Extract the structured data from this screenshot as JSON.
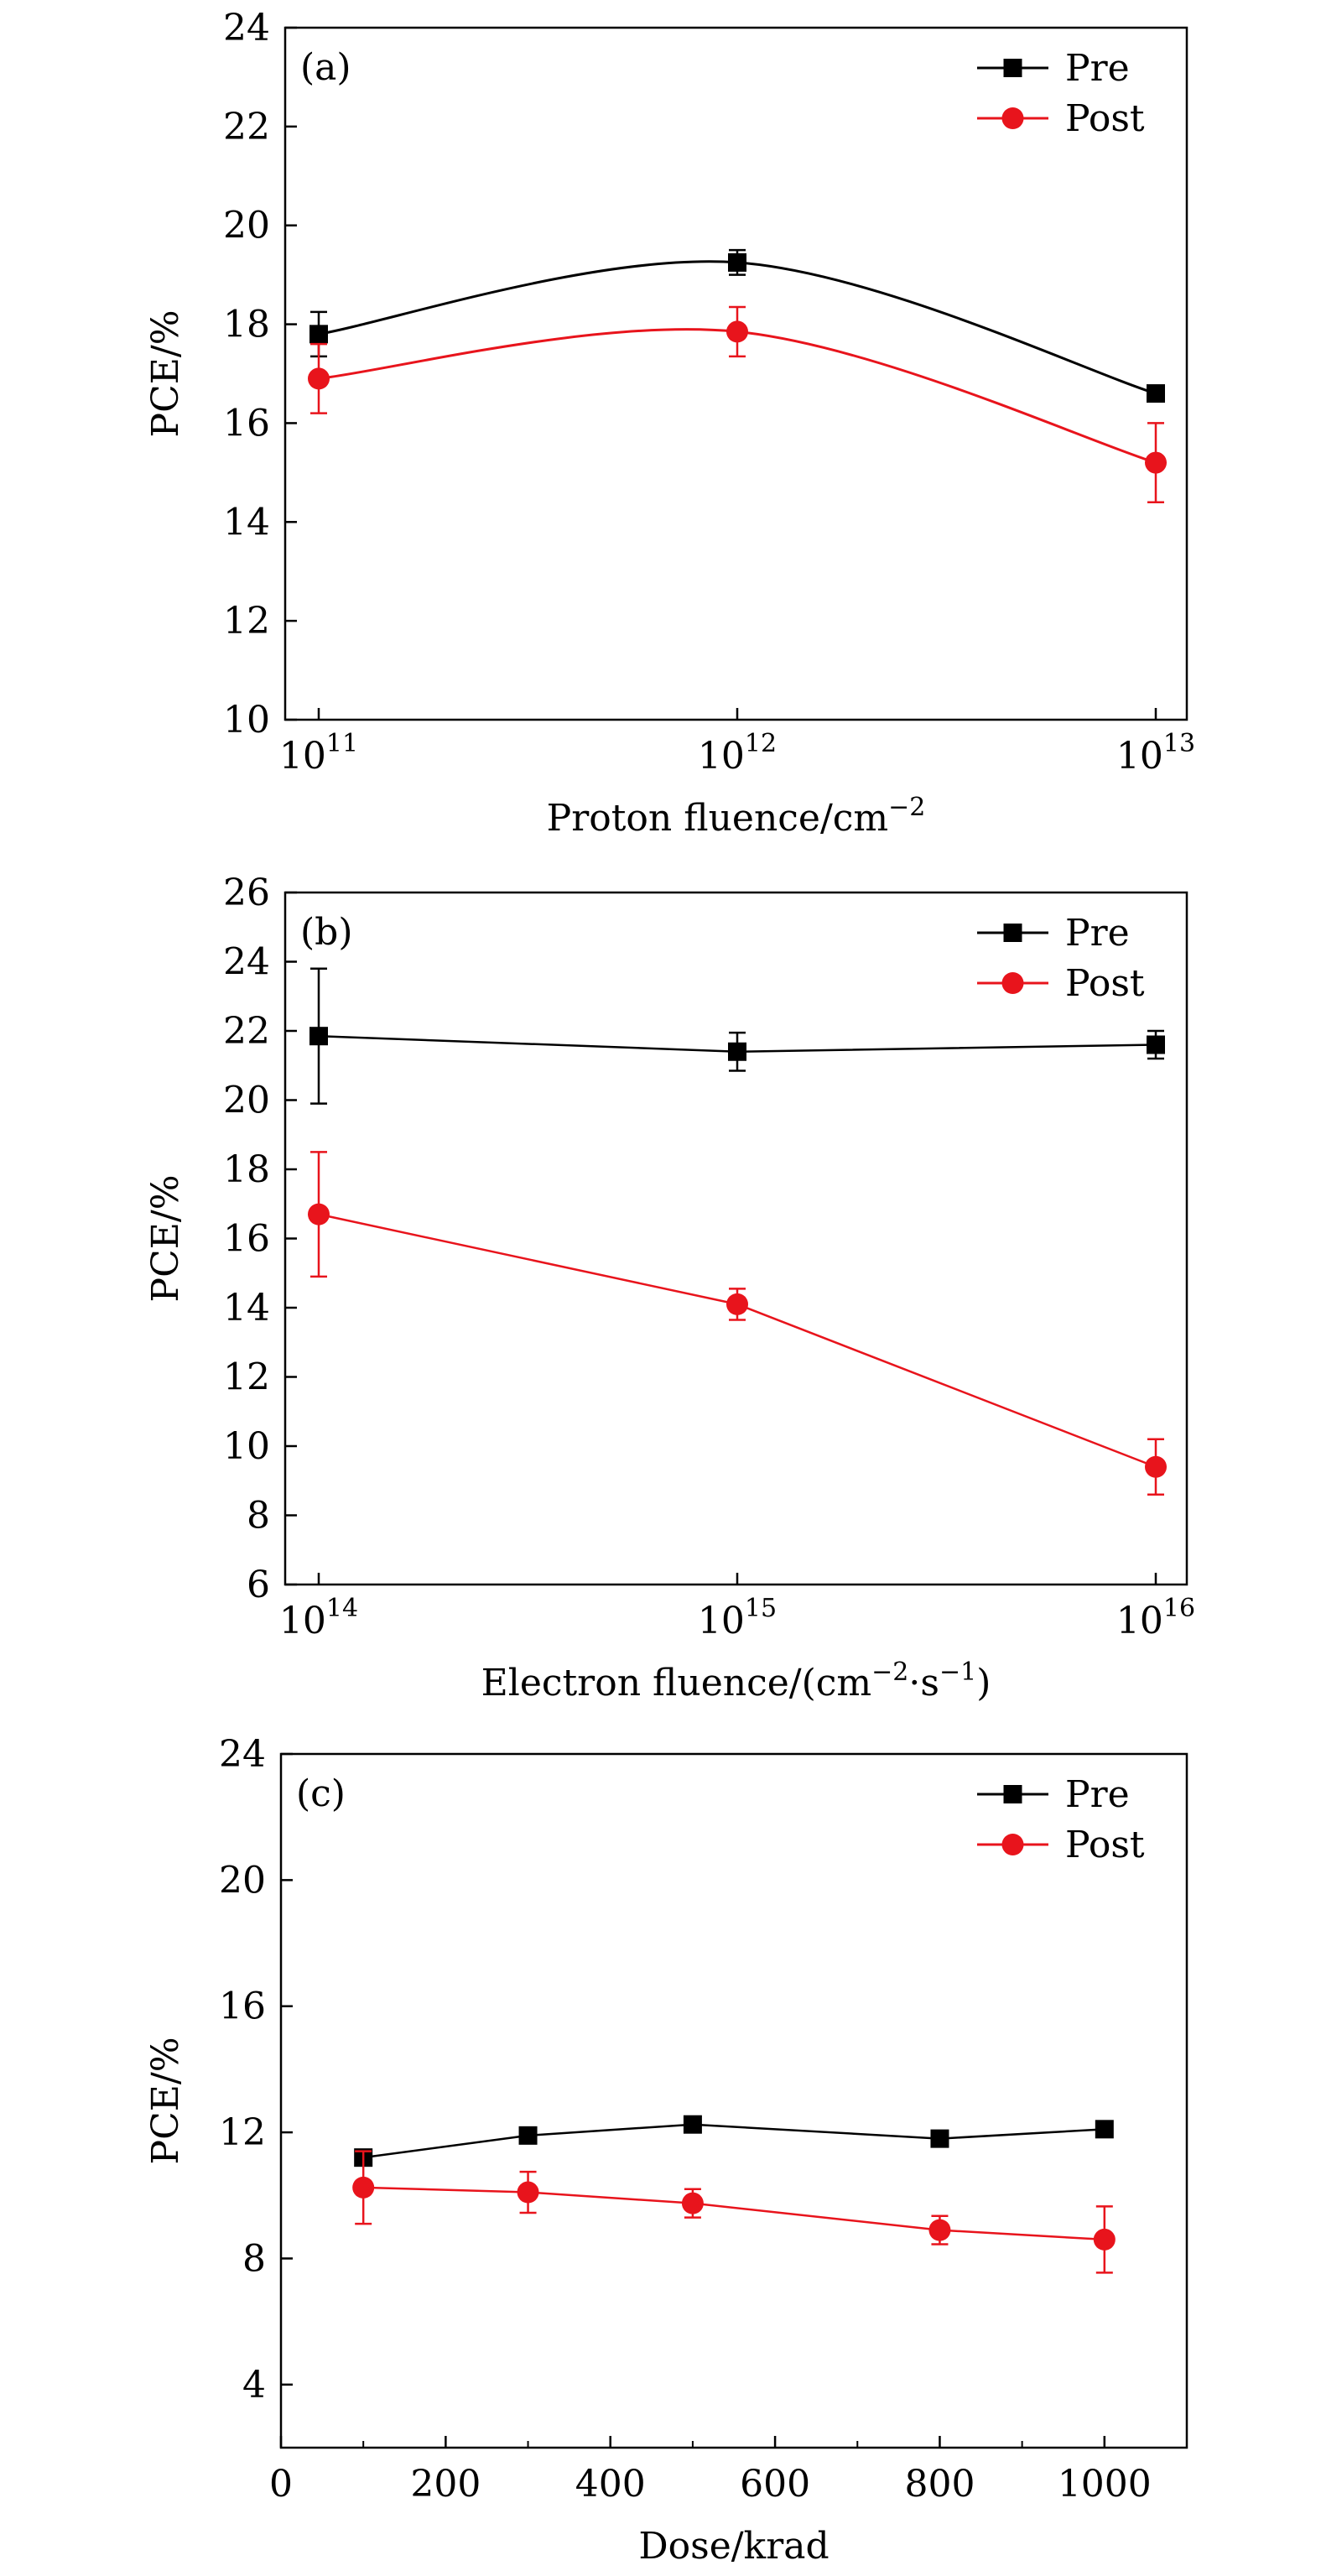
{
  "chart_data": [
    {
      "type": "line",
      "panel_label": "(a)",
      "x_scale": "log",
      "x": [
        100000000000,
        1000000000000,
        10000000000000
      ],
      "xlim": [
        100000000000,
        10000000000000
      ],
      "x_ticks": [
        {
          "base": "10",
          "exp": "11"
        },
        {
          "base": "10",
          "exp": "12"
        },
        {
          "base": "10",
          "exp": "13"
        }
      ],
      "xlabel": {
        "main": "Proton fluence/cm",
        "sup": "−2",
        "tail": ""
      },
      "ylabel": "PCE/%",
      "ylim": [
        10,
        24
      ],
      "y_ticks": [
        10,
        12,
        14,
        16,
        18,
        20,
        22,
        24
      ],
      "smooth": true,
      "legend_position": "top-right",
      "series": [
        {
          "name": "Pre",
          "color": "#000000",
          "marker": "square",
          "values": [
            17.8,
            19.25,
            16.6
          ],
          "errors": [
            0.45,
            0.25,
            0.15
          ]
        },
        {
          "name": "Post",
          "color": "#e8141c",
          "marker": "circle",
          "values": [
            16.9,
            17.85,
            15.2
          ],
          "errors": [
            0.7,
            0.5,
            0.8
          ]
        }
      ]
    },
    {
      "type": "line",
      "panel_label": "(b)",
      "x_scale": "log",
      "x": [
        100000000000000,
        1000000000000000,
        10000000000000000
      ],
      "xlim": [
        100000000000000,
        10000000000000000
      ],
      "x_ticks": [
        {
          "base": "10",
          "exp": "14"
        },
        {
          "base": "10",
          "exp": "15"
        },
        {
          "base": "10",
          "exp": "16"
        }
      ],
      "xlabel": {
        "main": "Electron fluence/(cm",
        "sup": "−2",
        "mid": "·s",
        "sup2": "−1",
        "tail": ")"
      },
      "ylabel": "PCE/%",
      "ylim": [
        6,
        26
      ],
      "y_ticks": [
        6,
        8,
        10,
        12,
        14,
        16,
        18,
        20,
        22,
        24,
        26
      ],
      "smooth": false,
      "legend_position": "top-right",
      "series": [
        {
          "name": "Pre",
          "color": "#000000",
          "marker": "square",
          "values": [
            21.85,
            21.4,
            21.6
          ],
          "errors": [
            1.95,
            0.55,
            0.4
          ]
        },
        {
          "name": "Post",
          "color": "#e8141c",
          "marker": "circle",
          "values": [
            16.7,
            14.1,
            9.4
          ],
          "errors": [
            1.8,
            0.45,
            0.8
          ]
        }
      ]
    },
    {
      "type": "line",
      "panel_label": "(c)",
      "x_scale": "linear",
      "x": [
        100,
        300,
        500,
        800,
        1000
      ],
      "xlim": [
        0,
        1100
      ],
      "x_ticks": [
        0,
        200,
        400,
        600,
        800,
        1000
      ],
      "x_minor_ticks": [
        100,
        300,
        500,
        700,
        900
      ],
      "xlabel": {
        "main": "Dose/krad",
        "sup": "",
        "tail": ""
      },
      "ylabel": "PCE/%",
      "ylim": [
        2,
        24
      ],
      "y_ticks": [
        4,
        8,
        12,
        16,
        20,
        24
      ],
      "smooth": false,
      "legend_position": "top-right",
      "series": [
        {
          "name": "Pre",
          "color": "#000000",
          "marker": "square",
          "values": [
            11.2,
            11.9,
            12.25,
            11.8,
            12.1
          ],
          "errors": [
            0.15,
            0.1,
            0.1,
            0.1,
            0.1
          ]
        },
        {
          "name": "Post",
          "color": "#e8141c",
          "marker": "circle",
          "values": [
            10.25,
            10.1,
            9.75,
            8.9,
            8.6
          ],
          "errors": [
            1.15,
            0.65,
            0.45,
            0.45,
            1.05
          ]
        }
      ]
    }
  ]
}
